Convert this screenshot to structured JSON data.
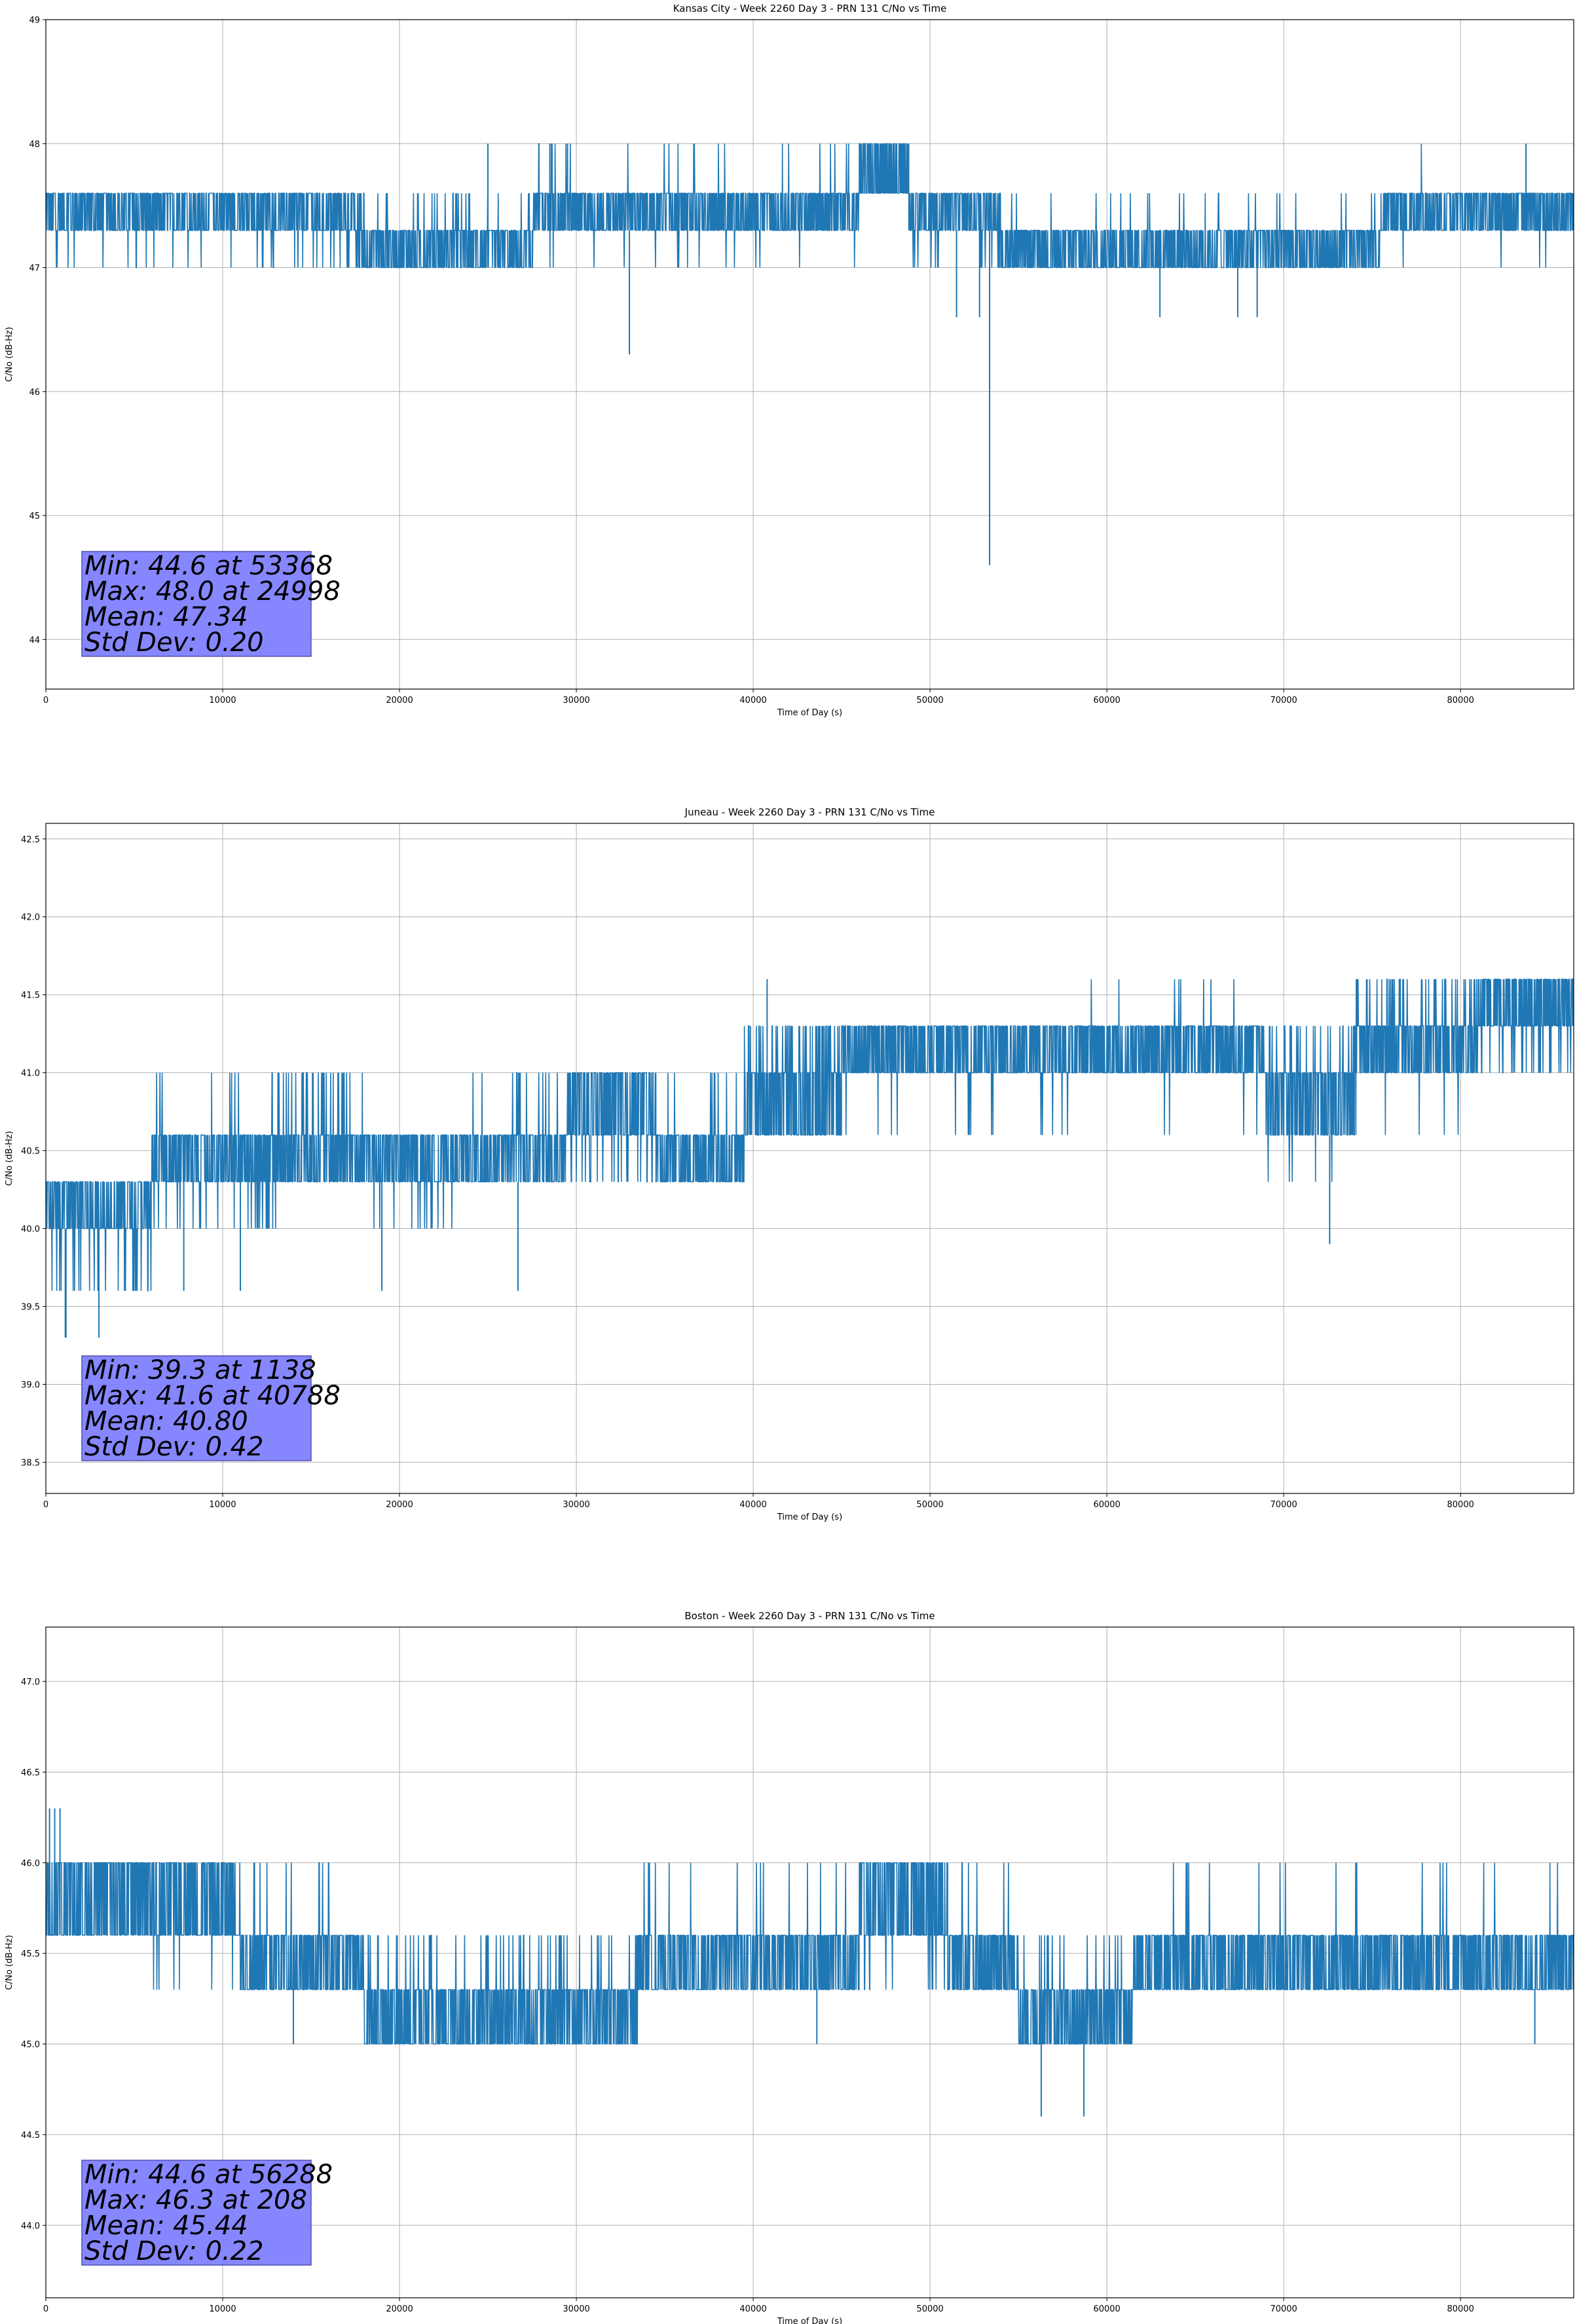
{
  "colors": {
    "line": "#1f77b4",
    "grid": "#b0b0b0",
    "axes": "#000000",
    "stats_box_fill": "#8080ff",
    "stats_box_edge": "#5050b0",
    "background": "#ffffff"
  },
  "chart_data": [
    {
      "type": "line",
      "title": "Kansas City - Week 2260 Day 3 - PRN 131 C/No vs Time",
      "xlabel": "Time of Day (s)",
      "ylabel": "C/No (dB-Hz)",
      "xlim": [
        0,
        86400
      ],
      "ylim": [
        43.6,
        49.0
      ],
      "xticks": [
        0,
        10000,
        20000,
        30000,
        40000,
        50000,
        60000,
        70000,
        80000
      ],
      "yticks": [
        44,
        45,
        46,
        47,
        48,
        49
      ],
      "ytick_labels": [
        "44",
        "45",
        "46",
        "47",
        "48",
        "49"
      ],
      "grid": true,
      "series": [
        {
          "segments": [
            {
              "start": 0,
              "end": 17500,
              "levels": [
                47.3,
                47.6
              ],
              "drop": 47.0,
              "drop_rate": 0.08
            },
            {
              "start": 17500,
              "end": 27500,
              "levels": [
                47.0,
                47.3
              ],
              "up": 47.6,
              "up_rate": 0.25
            },
            {
              "start": 27500,
              "end": 46000,
              "levels": [
                47.3,
                47.6
              ],
              "up": 48.0,
              "up_rate": 0.06,
              "drop": 47.0,
              "drop_rate": 0.08
            },
            {
              "start": 46000,
              "end": 48800,
              "levels": [
                47.6,
                48.0
              ]
            },
            {
              "start": 48800,
              "end": 54000,
              "levels": [
                47.3,
                47.6
              ],
              "drop": 47.0,
              "drop_rate": 0.1
            },
            {
              "start": 54000,
              "end": 75500,
              "levels": [
                47.0,
                47.3
              ],
              "up": 47.6,
              "up_rate": 0.08
            },
            {
              "start": 75500,
              "end": 86400,
              "levels": [
                47.3,
                47.6
              ],
              "drop": 47.0,
              "drop_rate": 0.04,
              "up": 48.0,
              "up_rate": 0.005
            }
          ],
          "spikes": [
            {
              "x": 24998,
              "y": 48.0
            },
            {
              "x": 28500,
              "y": 48.0
            },
            {
              "x": 29500,
              "y": 48.0
            },
            {
              "x": 33000,
              "y": 46.3
            },
            {
              "x": 51500,
              "y": 46.6
            },
            {
              "x": 53368,
              "y": 44.6
            },
            {
              "x": 52800,
              "y": 46.6
            },
            {
              "x": 63000,
              "y": 46.6
            },
            {
              "x": 67400,
              "y": 46.6
            },
            {
              "x": 68500,
              "y": 46.6
            },
            {
              "x": 83700,
              "y": 48.0
            }
          ]
        }
      ],
      "stats": [
        "Min: 44.6 at 53368",
        "Max: 48.0 at 24998",
        "Mean: 47.34",
        "Std Dev: 0.20"
      ],
      "stats_box_placement": "lower-left"
    },
    {
      "type": "line",
      "title": "Juneau - Week 2260 Day 3 - PRN 131 C/No vs Time",
      "xlabel": "Time of Day (s)",
      "ylabel": "C/No (dB-Hz)",
      "xlim": [
        0,
        86400
      ],
      "ylim": [
        38.3,
        42.6
      ],
      "xticks": [
        0,
        10000,
        20000,
        30000,
        40000,
        50000,
        60000,
        70000,
        80000
      ],
      "yticks": [
        38.5,
        39.0,
        39.5,
        40.0,
        40.5,
        41.0,
        41.5,
        42.0,
        42.5
      ],
      "ytick_labels": [
        "38.5",
        "39.0",
        "39.5",
        "40.0",
        "40.5",
        "41.0",
        "41.5",
        "42.0",
        "42.5"
      ],
      "grid": true,
      "series": [
        {
          "segments": [
            {
              "start": 0,
              "end": 6000,
              "levels": [
                40.0,
                40.3
              ],
              "drop": 39.6,
              "drop_rate": 0.3
            },
            {
              "start": 6000,
              "end": 13000,
              "levels": [
                40.3,
                40.6
              ],
              "drop": 40.0,
              "drop_rate": 0.2,
              "up": 41.0,
              "up_rate": 0.05
            },
            {
              "start": 13000,
              "end": 18000,
              "levels": [
                40.3,
                40.6
              ],
              "up": 41.0,
              "up_rate": 0.35
            },
            {
              "start": 18000,
              "end": 23000,
              "levels": [
                40.3,
                40.6
              ],
              "drop": 40.0,
              "drop_rate": 0.15
            },
            {
              "start": 23000,
              "end": 29500,
              "levels": [
                40.3,
                40.6
              ],
              "up": 41.0,
              "up_rate": 0.15
            },
            {
              "start": 29500,
              "end": 34500,
              "levels": [
                40.6,
                41.0
              ],
              "drop": 40.3,
              "drop_rate": 0.2
            },
            {
              "start": 34500,
              "end": 39500,
              "levels": [
                40.3,
                40.6
              ],
              "up": 41.0,
              "up_rate": 0.2
            },
            {
              "start": 39500,
              "end": 45000,
              "levels": [
                40.6,
                41.0
              ],
              "up": 41.3,
              "up_rate": 0.6
            },
            {
              "start": 45000,
              "end": 58500,
              "levels": [
                41.0,
                41.3
              ],
              "drop": 40.6,
              "drop_rate": 0.1
            },
            {
              "start": 58500,
              "end": 69000,
              "levels": [
                41.0,
                41.3
              ],
              "up": 41.6,
              "up_rate": 0.06,
              "drop": 40.6,
              "drop_rate": 0.06
            },
            {
              "start": 69000,
              "end": 74000,
              "levels": [
                40.6,
                41.0
              ],
              "up": 41.3,
              "up_rate": 0.4,
              "drop": 40.3,
              "drop_rate": 0.1
            },
            {
              "start": 74000,
              "end": 81000,
              "levels": [
                41.0,
                41.3
              ],
              "up": 41.6,
              "up_rate": 0.35,
              "drop": 40.6,
              "drop_rate": 0.05
            },
            {
              "start": 81000,
              "end": 86400,
              "levels": [
                41.3,
                41.6
              ],
              "drop": 41.0,
              "drop_rate": 0.3
            }
          ],
          "spikes": [
            {
              "x": 1138,
              "y": 39.3
            },
            {
              "x": 1100,
              "y": 39.3
            },
            {
              "x": 3000,
              "y": 39.3
            },
            {
              "x": 40788,
              "y": 41.6
            },
            {
              "x": 72600,
              "y": 39.9
            },
            {
              "x": 26700,
              "y": 39.6
            },
            {
              "x": 19000,
              "y": 39.6
            },
            {
              "x": 7800,
              "y": 39.6
            },
            {
              "x": 11000,
              "y": 39.6
            }
          ]
        }
      ],
      "stats": [
        "Min: 39.3 at 1138",
        "Max: 41.6 at 40788",
        "Mean: 40.80",
        "Std Dev: 0.42"
      ],
      "stats_box_placement": "lower-left"
    },
    {
      "type": "line",
      "title": "Boston - Week 2260 Day 3 - PRN 131 C/No vs Time",
      "xlabel": "Time of Day (s)",
      "ylabel": "C/No (dB-Hz)",
      "xlim": [
        0,
        86400
      ],
      "ylim": [
        43.6,
        47.3
      ],
      "xticks": [
        0,
        10000,
        20000,
        30000,
        40000,
        50000,
        60000,
        70000,
        80000
      ],
      "yticks": [
        44.0,
        44.5,
        45.0,
        45.5,
        46.0,
        46.5,
        47.0
      ],
      "ytick_labels": [
        "44.0",
        "44.5",
        "45.0",
        "45.5",
        "46.0",
        "46.5",
        "47.0"
      ],
      "grid": true,
      "series": [
        {
          "segments": [
            {
              "start": 0,
              "end": 5000,
              "levels": [
                45.6,
                46.0
              ]
            },
            {
              "start": 5000,
              "end": 11000,
              "levels": [
                45.6,
                46.0
              ],
              "drop": 45.3,
              "drop_rate": 0.15
            },
            {
              "start": 11000,
              "end": 18000,
              "levels": [
                45.3,
                45.6
              ],
              "up": 46.0,
              "up_rate": 0.05
            },
            {
              "start": 18000,
              "end": 33500,
              "levels": [
                45.0,
                45.3
              ],
              "up": 45.6,
              "up_rate": 0.2
            },
            {
              "start": 33500,
              "end": 46000,
              "levels": [
                45.3,
                45.6
              ],
              "up": 46.0,
              "up_rate": 0.05
            },
            {
              "start": 46000,
              "end": 51000,
              "levels": [
                45.6,
                46.0
              ],
              "drop": 45.3,
              "drop_rate": 0.2
            },
            {
              "start": 51000,
              "end": 55000,
              "levels": [
                45.3,
                45.6
              ],
              "up": 46.0,
              "up_rate": 0.1
            },
            {
              "start": 55000,
              "end": 61500,
              "levels": [
                45.0,
                45.3
              ],
              "up": 45.6,
              "up_rate": 0.15
            },
            {
              "start": 61500,
              "end": 86400,
              "levels": [
                45.3,
                45.6
              ],
              "up": 46.0,
              "up_rate": 0.06
            }
          ],
          "spikes": [
            {
              "x": 208,
              "y": 46.3
            },
            {
              "x": 500,
              "y": 46.3
            },
            {
              "x": 800,
              "y": 46.3
            },
            {
              "x": 56288,
              "y": 44.6
            },
            {
              "x": 58700,
              "y": 44.6
            },
            {
              "x": 43600,
              "y": 45.0
            },
            {
              "x": 84200,
              "y": 45.0
            },
            {
              "x": 14000,
              "y": 45.0
            }
          ]
        }
      ],
      "stats": [
        "Min: 44.6 at 56288",
        "Max: 46.3 at 208",
        "Mean: 45.44",
        "Std Dev: 0.22"
      ],
      "stats_box_placement": "lower-left"
    }
  ]
}
